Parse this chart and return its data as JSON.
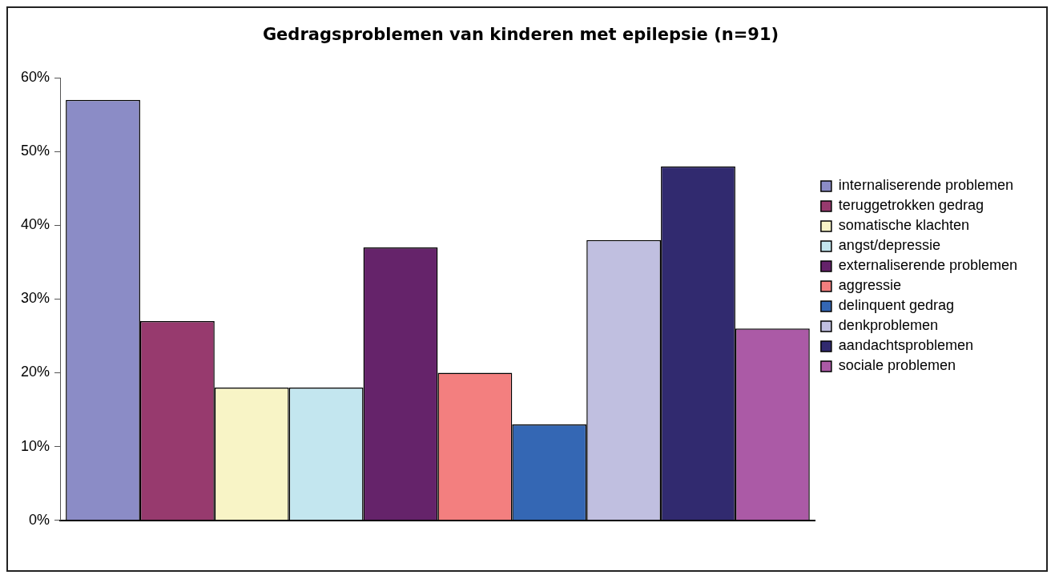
{
  "chart_data": {
    "type": "bar",
    "title": "Gedragsproblemen van kinderen met epilepsie (n=91)",
    "categories": [
      null
    ],
    "series": [
      {
        "name": "internaliserende problemen",
        "color": "#8b8cc6",
        "values": [
          57
        ]
      },
      {
        "name": "teruggetrokken gedrag",
        "color": "#973a6e",
        "values": [
          27
        ]
      },
      {
        "name": "somatische klachten",
        "color": "#f8f4c6",
        "values": [
          18
        ]
      },
      {
        "name": "angst/depressie",
        "color": "#c3e6ef",
        "values": [
          18
        ]
      },
      {
        "name": "externaliserende problemen",
        "color": "#65236a",
        "values": [
          37
        ]
      },
      {
        "name": "aggressie",
        "color": "#f37f7f",
        "values": [
          20
        ]
      },
      {
        "name": "delinquent gedrag",
        "color": "#3467b4",
        "values": [
          13
        ]
      },
      {
        "name": "denkproblemen",
        "color": "#c0bfe0",
        "values": [
          38
        ]
      },
      {
        "name": "aandachtsproblemen",
        "color": "#312a6f",
        "values": [
          48
        ]
      },
      {
        "name": "sociale problemen",
        "color": "#ab5aa6",
        "values": [
          26
        ]
      }
    ],
    "ylim": [
      0,
      60
    ],
    "yticks": [
      {
        "value": 0,
        "label": "0%"
      },
      {
        "value": 10,
        "label": "10%"
      },
      {
        "value": 20,
        "label": "20%"
      },
      {
        "value": 30,
        "label": "30%"
      },
      {
        "value": 40,
        "label": "40%"
      },
      {
        "value": 50,
        "label": "50%"
      },
      {
        "value": 60,
        "label": "60%"
      }
    ],
    "grid": false,
    "legend": "right"
  }
}
